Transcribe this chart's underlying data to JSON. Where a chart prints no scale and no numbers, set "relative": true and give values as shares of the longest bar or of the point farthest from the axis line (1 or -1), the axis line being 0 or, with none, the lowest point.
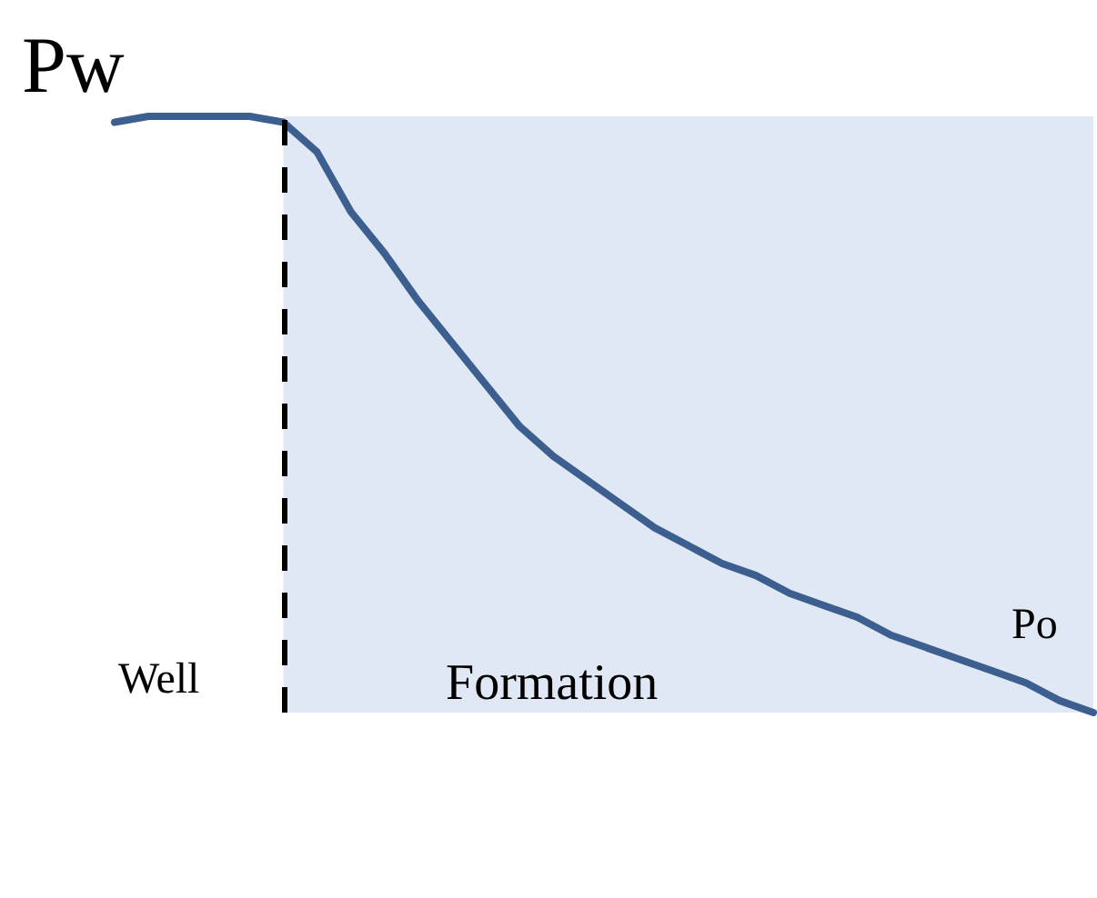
{
  "chart_data": {
    "type": "line",
    "relative": true,
    "categories": [
      null,
      null,
      null,
      null,
      null,
      null,
      null,
      null,
      null,
      null,
      null,
      null,
      null,
      null,
      null,
      null,
      null,
      null,
      null,
      null,
      null,
      null,
      null,
      null,
      null,
      null,
      null,
      null,
      null,
      null
    ],
    "series": [
      {
        "color": "#3d5f8f",
        "values": [
          0.99,
          1,
          1,
          1,
          1,
          0.99,
          0.94,
          0.84,
          0.77,
          0.69,
          0.62,
          0.55,
          0.48,
          0.43,
          0.39,
          0.35,
          0.31,
          0.28,
          0.25,
          0.23,
          0.2,
          0.18,
          0.16,
          0.13,
          0.11,
          0.09,
          0.07,
          0.05,
          0.02,
          0
        ]
      }
    ],
    "annotations": [
      "Pw",
      "Po",
      "Well",
      "Formation"
    ],
    "grid": false,
    "marker": "none",
    "line_style": "solid",
    "tick_labels": false
  }
}
